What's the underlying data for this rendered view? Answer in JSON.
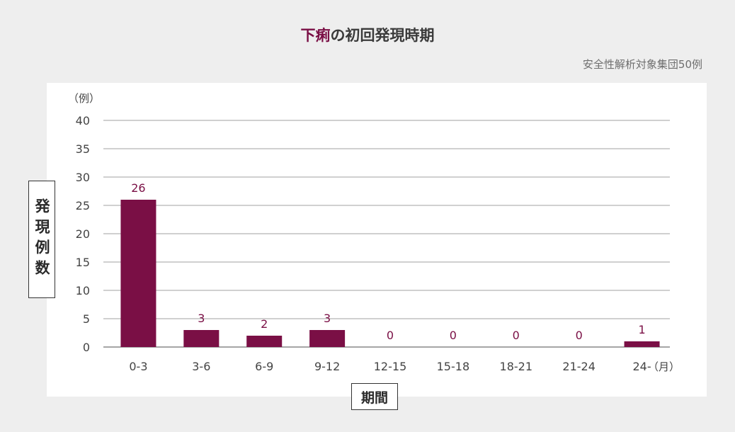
{
  "title": {
    "accent": "下痢",
    "rest": "の初回発現時期"
  },
  "subtitle": "安全性解析対象集団50例",
  "chart_data": {
    "type": "bar",
    "title": "下痢の初回発現時期",
    "subtitle": "安全性解析対象集団50例",
    "ylabel": "発現例数",
    "xlabel": "期間",
    "y_unit": "（例）",
    "x_unit": "（月）",
    "categories": [
      "0-3",
      "3-6",
      "6-9",
      "9-12",
      "12-15",
      "15-18",
      "18-21",
      "21-24",
      "24-"
    ],
    "values": [
      26,
      3,
      2,
      3,
      0,
      0,
      0,
      0,
      1
    ],
    "ylim": [
      0,
      40
    ],
    "yticks": [
      0,
      5,
      10,
      15,
      20,
      25,
      30,
      35,
      40
    ],
    "grid": true,
    "bar_color": "#7a0f45"
  }
}
